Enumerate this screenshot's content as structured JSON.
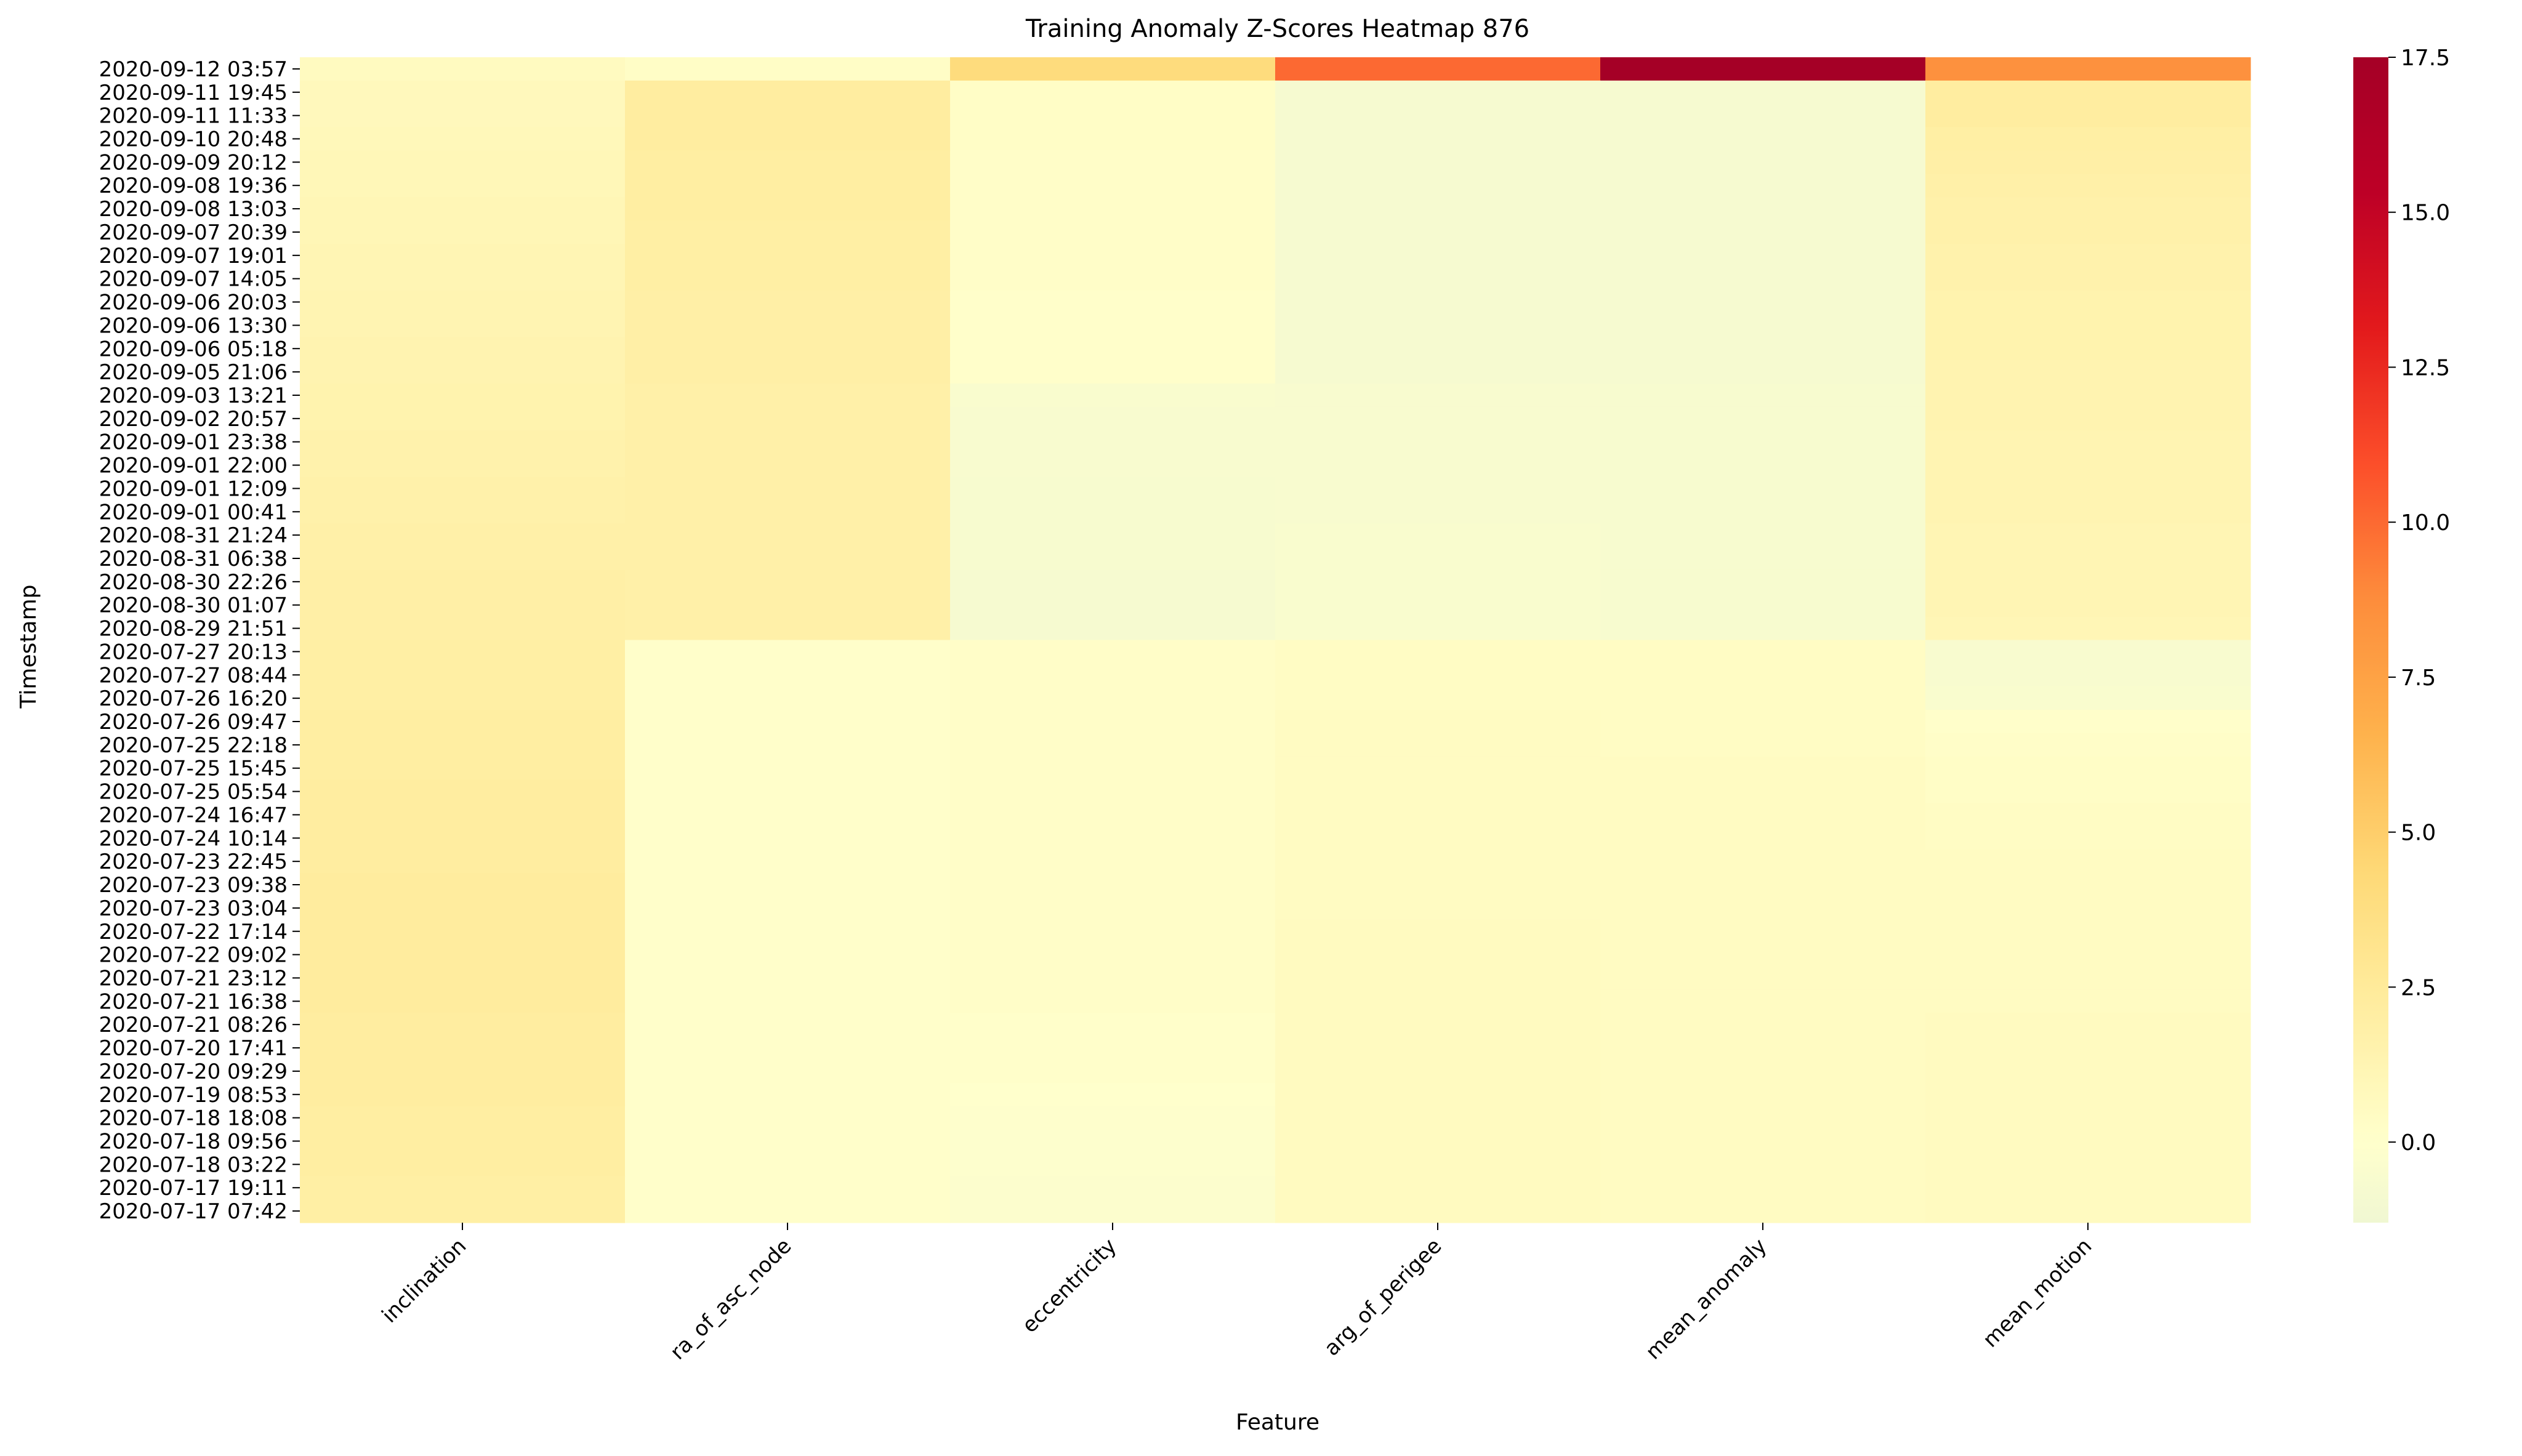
{
  "chart_data": {
    "type": "heatmap",
    "title": "Training Anomaly Z-Scores Heatmap 876",
    "xlabel": "Feature",
    "ylabel": "Timestamp",
    "columns": [
      "inclination",
      "ra_of_asc_node",
      "eccentricity",
      "arg_of_perigee",
      "mean_anomaly",
      "mean_motion"
    ],
    "rows": [
      "2020-09-12 03:57",
      "2020-09-11 19:45",
      "2020-09-11 11:33",
      "2020-09-10 20:48",
      "2020-09-09 20:12",
      "2020-09-08 19:36",
      "2020-09-08 13:03",
      "2020-09-07 20:39",
      "2020-09-07 19:01",
      "2020-09-07 14:05",
      "2020-09-06 20:03",
      "2020-09-06 13:30",
      "2020-09-06 05:18",
      "2020-09-05 21:06",
      "2020-09-03 13:21",
      "2020-09-02 20:57",
      "2020-09-01 23:38",
      "2020-09-01 22:00",
      "2020-09-01 12:09",
      "2020-09-01 00:41",
      "2020-08-31 21:24",
      "2020-08-31 06:38",
      "2020-08-30 22:26",
      "2020-08-30 01:07",
      "2020-08-29 21:51",
      "2020-07-27 20:13",
      "2020-07-27 08:44",
      "2020-07-26 16:20",
      "2020-07-26 09:47",
      "2020-07-25 22:18",
      "2020-07-25 15:45",
      "2020-07-25 05:54",
      "2020-07-24 16:47",
      "2020-07-24 10:14",
      "2020-07-23 22:45",
      "2020-07-23 09:38",
      "2020-07-23 03:04",
      "2020-07-22 17:14",
      "2020-07-22 09:02",
      "2020-07-21 23:12",
      "2020-07-21 16:38",
      "2020-07-21 08:26",
      "2020-07-20 17:41",
      "2020-07-20 09:29",
      "2020-07-19 08:53",
      "2020-07-18 18:08",
      "2020-07-18 09:56",
      "2020-07-18 03:22",
      "2020-07-17 19:11",
      "2020-07-17 07:42"
    ],
    "values": [
      [
        0.6,
        0.3,
        4.0,
        10.0,
        17.5,
        8.5
      ],
      [
        0.8,
        2.2,
        0.3,
        -0.8,
        -0.8,
        2.2
      ],
      [
        0.8,
        2.2,
        0.3,
        -0.8,
        -0.8,
        2.2
      ],
      [
        0.9,
        2.2,
        0.3,
        -0.8,
        -0.8,
        2.0
      ],
      [
        1.0,
        2.1,
        0.2,
        -0.8,
        -0.8,
        1.9
      ],
      [
        1.0,
        2.1,
        0.2,
        -0.8,
        -0.8,
        1.8
      ],
      [
        1.1,
        2.1,
        0.2,
        -0.8,
        -0.8,
        1.7
      ],
      [
        1.1,
        2.0,
        0.2,
        -0.8,
        -0.8,
        1.7
      ],
      [
        1.2,
        2.0,
        0.2,
        -0.8,
        -0.8,
        1.6
      ],
      [
        1.2,
        2.0,
        0.2,
        -0.8,
        -0.8,
        1.6
      ],
      [
        1.3,
        1.9,
        0.1,
        -0.8,
        -0.8,
        1.5
      ],
      [
        1.3,
        1.9,
        0.1,
        -0.8,
        -0.8,
        1.5
      ],
      [
        1.4,
        1.9,
        0.1,
        -0.8,
        -0.8,
        1.5
      ],
      [
        1.4,
        1.9,
        0.1,
        -0.8,
        -0.8,
        1.4
      ],
      [
        1.5,
        1.8,
        -0.5,
        -0.6,
        -0.7,
        1.4
      ],
      [
        1.5,
        1.8,
        -0.6,
        -0.6,
        -0.7,
        1.4
      ],
      [
        1.6,
        1.8,
        -0.6,
        -0.6,
        -0.7,
        1.3
      ],
      [
        1.6,
        1.8,
        -0.6,
        -0.6,
        -0.7,
        1.3
      ],
      [
        1.7,
        1.8,
        -0.7,
        -0.6,
        -0.7,
        1.3
      ],
      [
        1.7,
        1.8,
        -0.7,
        -0.6,
        -0.7,
        1.3
      ],
      [
        1.8,
        1.8,
        -0.7,
        -0.5,
        -0.7,
        1.2
      ],
      [
        1.8,
        1.8,
        -0.7,
        -0.5,
        -0.7,
        1.2
      ],
      [
        1.9,
        1.8,
        -0.8,
        -0.5,
        -0.7,
        1.2
      ],
      [
        1.9,
        1.8,
        -0.8,
        -0.5,
        -0.7,
        1.2
      ],
      [
        1.9,
        1.8,
        -0.8,
        -0.5,
        -0.7,
        1.1
      ],
      [
        2.0,
        0.1,
        0.2,
        0.4,
        0.4,
        -0.6
      ],
      [
        2.0,
        0.1,
        0.2,
        0.4,
        0.4,
        -0.6
      ],
      [
        2.0,
        0.1,
        0.2,
        0.4,
        0.4,
        -0.5
      ],
      [
        2.1,
        0.1,
        0.2,
        0.5,
        0.4,
        0.1
      ],
      [
        2.1,
        0.1,
        0.2,
        0.5,
        0.4,
        0.2
      ],
      [
        2.1,
        0.1,
        0.2,
        0.5,
        0.5,
        0.3
      ],
      [
        2.2,
        0.1,
        0.2,
        0.5,
        0.5,
        0.3
      ],
      [
        2.2,
        0.1,
        0.2,
        0.5,
        0.5,
        0.4
      ],
      [
        2.2,
        0.1,
        0.2,
        0.5,
        0.5,
        0.4
      ],
      [
        2.2,
        0.1,
        0.2,
        0.5,
        0.5,
        0.5
      ],
      [
        2.3,
        0.1,
        0.2,
        0.5,
        0.5,
        0.5
      ],
      [
        2.3,
        0.1,
        0.2,
        0.5,
        0.5,
        0.5
      ],
      [
        2.3,
        0.1,
        0.2,
        0.6,
        0.5,
        0.5
      ],
      [
        2.3,
        0.1,
        0.2,
        0.6,
        0.5,
        0.5
      ],
      [
        2.3,
        0.1,
        0.2,
        0.6,
        0.5,
        0.5
      ],
      [
        2.3,
        0.1,
        0.2,
        0.6,
        0.5,
        0.5
      ],
      [
        2.2,
        0.1,
        0.1,
        0.6,
        0.5,
        0.6
      ],
      [
        2.2,
        0.1,
        0.1,
        0.6,
        0.5,
        0.6
      ],
      [
        2.2,
        0.1,
        0.1,
        0.6,
        0.5,
        0.6
      ],
      [
        2.2,
        0.1,
        0.0,
        0.6,
        0.5,
        0.6
      ],
      [
        2.1,
        0.1,
        -0.1,
        0.6,
        0.5,
        0.6
      ],
      [
        2.1,
        0.1,
        -0.2,
        0.6,
        0.5,
        0.6
      ],
      [
        2.1,
        0.1,
        -0.2,
        0.6,
        0.5,
        0.6
      ],
      [
        2.0,
        0.1,
        -0.3,
        0.6,
        0.5,
        0.6
      ],
      [
        2.0,
        0.1,
        -0.3,
        0.6,
        0.5,
        0.6
      ]
    ],
    "vmin": -1.3,
    "vmax": 17.5,
    "colorbar_ticks": [
      -0.0,
      2.5,
      5.0,
      7.5,
      10.0,
      12.5,
      15.0,
      17.5
    ],
    "colormap": [
      "#ffffcc",
      "#ffeda0",
      "#fed976",
      "#feb24c",
      "#fd8d3c",
      "#fc4e2a",
      "#e31a1c",
      "#bd0026",
      "#a50026"
    ],
    "colormap_low": "#f0f7d2"
  }
}
